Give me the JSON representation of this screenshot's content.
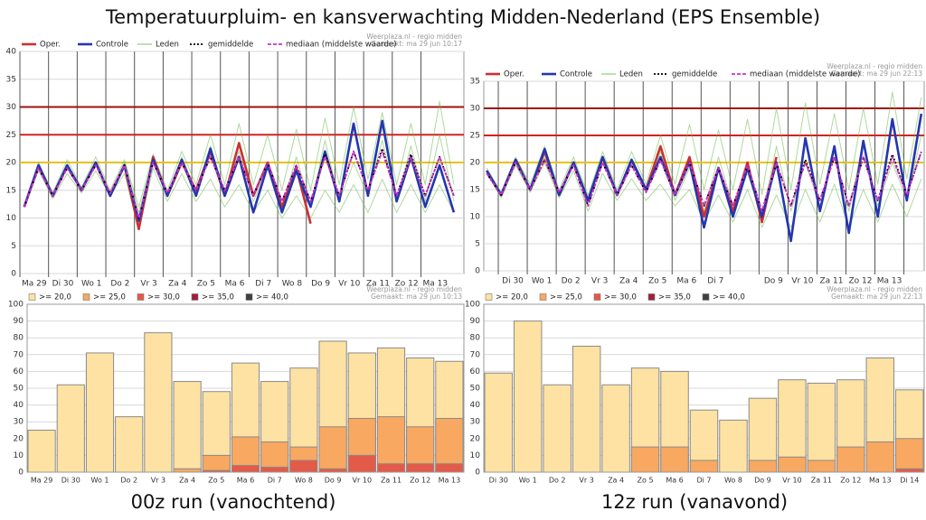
{
  "title": "Temperatuurpluim- en kansverwachting Midden-Nederland (EPS Ensemble)",
  "captions": [
    "00z run (vanochtend)",
    "12z run (vanavond)"
  ],
  "chart_data": [
    {
      "type": "line",
      "source": "Weerplaza.nl - regio midden",
      "made": "Gemaakt: ma 29 jun 10:17",
      "xlim": [
        0,
        15.5
      ],
      "ylim": [
        0,
        40
      ],
      "yticks": [
        0,
        5,
        10,
        15,
        20,
        25,
        30,
        35,
        40
      ],
      "grid": true,
      "xticks": [
        {
          "value": 0,
          "label": "Ma 29"
        },
        {
          "value": 1,
          "label": "Di 30"
        },
        {
          "value": 2,
          "label": "Wo 1"
        },
        {
          "value": 3,
          "label": "Do 2"
        },
        {
          "value": 4,
          "label": "Vr 3"
        },
        {
          "value": 5,
          "label": "Za 4"
        },
        {
          "value": 6,
          "label": "Zo 5"
        },
        {
          "value": 7,
          "label": "Ma 6"
        },
        {
          "value": 8,
          "label": "Di 7"
        },
        {
          "value": 9,
          "label": "Wo 8"
        },
        {
          "value": 10,
          "label": "Do 9"
        },
        {
          "value": 11,
          "label": "Vr 10"
        },
        {
          "value": 12,
          "label": "Za 11"
        },
        {
          "value": 13,
          "label": "Zo 12"
        },
        {
          "value": 14,
          "label": "Ma 13"
        }
      ],
      "reference_lines": [
        {
          "value": 20,
          "color": "#e8c21a"
        },
        {
          "value": 25,
          "color": "#d42020"
        },
        {
          "value": 30,
          "color": "#a01010"
        }
      ],
      "x": [
        0.15,
        0.65,
        1.15,
        1.65,
        2.15,
        2.65,
        3.15,
        3.65,
        4.15,
        4.65,
        5.15,
        5.65,
        6.15,
        6.65,
        7.15,
        7.65,
        8.15,
        8.65,
        9.15,
        9.65,
        10.15,
        10.65,
        11.15,
        11.65,
        12.15,
        12.65,
        13.15,
        13.65,
        14.15,
        14.65,
        15.15
      ],
      "series": [
        {
          "name": "Oper.",
          "color": "#cc3030",
          "values": [
            12,
            19.5,
            14,
            19.5,
            15,
            20,
            14,
            19.5,
            8,
            21,
            14,
            20,
            15,
            22,
            14,
            23.5,
            14,
            20,
            12,
            19,
            9,
            null,
            null,
            null,
            null,
            null,
            null,
            null,
            null,
            null,
            null
          ]
        },
        {
          "name": "Controle",
          "color": "#2436b0",
          "values": [
            12,
            19.5,
            14,
            19.5,
            15,
            20,
            14,
            19.5,
            9.5,
            20.5,
            14,
            20.5,
            14,
            22.5,
            14,
            21,
            11,
            19.5,
            11,
            18.5,
            12,
            22,
            13,
            27,
            14,
            27.5,
            13,
            21,
            12,
            19.5,
            11
          ]
        },
        {
          "name": "Leden",
          "color": "#6cba4c",
          "members": [
            [
              12,
              20,
              14.5,
              20.5,
              15.5,
              21,
              15,
              20.5,
              12,
              21.5,
              15,
              22,
              16,
              25,
              16,
              27,
              16,
              25,
              15,
              26,
              15,
              28,
              16,
              30,
              17,
              29,
              16,
              27,
              16,
              31,
              16
            ],
            [
              12,
              18.5,
              13.5,
              18,
              14.5,
              18.5,
              14,
              18,
              8,
              19,
              13,
              18,
              13,
              17,
              12,
              16,
              11,
              15,
              10,
              14,
              10,
              15,
              11,
              16,
              11,
              17,
              11,
              16,
              11,
              16,
              11
            ],
            [
              12,
              19.5,
              14,
              19,
              15,
              20,
              14.5,
              20,
              11,
              20.5,
              14,
              21,
              15,
              23,
              14,
              22,
              13,
              19,
              12,
              21,
              12,
              24,
              13,
              20,
              14,
              24,
              13,
              23,
              13,
              25,
              13
            ]
          ]
        },
        {
          "name": "gemiddelde",
          "color": "#000000",
          "dash": "2,2",
          "values": [
            12,
            19,
            14,
            19,
            15,
            19.5,
            14.5,
            19.5,
            10,
            20,
            14.5,
            20,
            15,
            21,
            15,
            21,
            14,
            20,
            13,
            19.5,
            13,
            21.5,
            14,
            22,
            15,
            22.5,
            14,
            21.5,
            14,
            21,
            14
          ]
        },
        {
          "name": "mediaan (middelste waarde)",
          "color": "#cc30cc",
          "dash": "4,2",
          "values": [
            12,
            19,
            14,
            19,
            15,
            19.5,
            14.5,
            19.5,
            10,
            20,
            14.5,
            20,
            15,
            21,
            15,
            21,
            14,
            20,
            13,
            19.5,
            13,
            21,
            14,
            22,
            15,
            22,
            14,
            21,
            14,
            21,
            14
          ]
        }
      ]
    },
    {
      "type": "line",
      "source": "Weerplaza.nl - regio midden",
      "made": "Gemaakt: ma 29 jun 22:13",
      "xlim": [
        0.5,
        15.7
      ],
      "ylim": [
        0,
        35
      ],
      "yticks": [
        0,
        5,
        10,
        15,
        20,
        25,
        30,
        35
      ],
      "grid": true,
      "xticks": [
        {
          "value": 1,
          "label": "Di 30"
        },
        {
          "value": 2,
          "label": "Wo 1"
        },
        {
          "value": 3,
          "label": "Do 2"
        },
        {
          "value": 4,
          "label": "Vr 3"
        },
        {
          "value": 5,
          "label": "Za 4"
        },
        {
          "value": 6,
          "label": "Zo 5"
        },
        {
          "value": 7,
          "label": "Ma 6"
        },
        {
          "value": 8,
          "label": "Di 7"
        },
        {
          "value": 9,
          "label": null
        },
        {
          "value": 10,
          "label": "Do 9"
        },
        {
          "value": 11,
          "label": "Vr 10"
        },
        {
          "value": 12,
          "label": "Za 11"
        },
        {
          "value": 13,
          "label": "Zo 12"
        },
        {
          "value": 14,
          "label": "Ma 13"
        },
        {
          "value": 15,
          "label": null
        }
      ],
      "reference_lines": [
        {
          "value": 20,
          "color": "#e8c21a"
        },
        {
          "value": 25,
          "color": "#d42020"
        },
        {
          "value": 30,
          "color": "#a01010"
        }
      ],
      "x": [
        0.6,
        1.1,
        1.6,
        2.1,
        2.6,
        3.1,
        3.6,
        4.1,
        4.6,
        5.1,
        5.6,
        6.1,
        6.6,
        7.1,
        7.6,
        8.1,
        8.6,
        9.1,
        9.6,
        10.1,
        10.6,
        11.1,
        11.6,
        12.1,
        12.6,
        13.1,
        13.6,
        14.1,
        14.6,
        15.1,
        15.6
      ],
      "series": [
        {
          "name": "Oper.",
          "color": "#cc3030",
          "values": [
            18.5,
            14,
            20.5,
            15,
            22,
            14,
            20,
            13,
            21,
            14,
            20.5,
            15,
            23,
            14,
            21,
            10,
            19,
            11,
            20,
            9,
            21,
            null,
            null,
            null,
            null,
            null,
            null,
            null,
            null,
            null,
            null
          ]
        },
        {
          "name": "Controle",
          "color": "#2436b0",
          "values": [
            18.5,
            14,
            20.5,
            15,
            22.5,
            14,
            20,
            13,
            21,
            14,
            20.5,
            15,
            21,
            14,
            20,
            8,
            19,
            10,
            19,
            10,
            20,
            5.5,
            24.5,
            11,
            23,
            7,
            24,
            10,
            28,
            13,
            29
          ]
        },
        {
          "name": "Leden",
          "color": "#6cba4c",
          "members": [
            [
              19,
              14.5,
              21,
              16,
              23,
              15,
              21,
              14,
              22,
              15,
              22,
              16,
              25,
              16,
              27,
              15,
              26,
              15,
              28,
              14,
              30,
              15,
              31,
              16,
              29,
              15,
              30,
              16,
              33,
              17,
              32
            ],
            [
              18,
              13.5,
              19.5,
              14.5,
              20,
              13.5,
              18.5,
              11,
              18,
              13,
              17,
              13,
              16,
              12,
              15,
              9,
              14,
              9,
              15,
              8,
              14,
              8,
              15,
              9,
              16,
              8,
              15,
              9,
              16,
              10,
              17
            ],
            [
              18.5,
              14,
              20,
              15,
              21,
              14,
              20,
              12.5,
              20.5,
              14,
              20,
              14.5,
              22,
              13,
              19,
              11,
              21,
              12,
              18,
              10,
              23,
              11,
              20,
              12,
              22,
              11,
              24,
              12,
              20,
              13,
              25
            ]
          ]
        },
        {
          "name": "gemiddelde",
          "color": "#000000",
          "dash": "2,2",
          "values": [
            18,
            14,
            20,
            15,
            20.5,
            14.5,
            19.5,
            12,
            20,
            14,
            19.5,
            14.5,
            20.5,
            14,
            20,
            12,
            19,
            12,
            19.5,
            11,
            20,
            12,
            20.5,
            13,
            21,
            12,
            21,
            13,
            21.5,
            14,
            22
          ]
        },
        {
          "name": "mediaan (middelste waarde)",
          "color": "#cc30cc",
          "dash": "4,2",
          "values": [
            18,
            14,
            20,
            15,
            20.5,
            14.5,
            19.5,
            12,
            20,
            14,
            19.5,
            14.5,
            20.5,
            14,
            20,
            12,
            19,
            12,
            19.5,
            11,
            20,
            12,
            20,
            13,
            21,
            12,
            21,
            13,
            21,
            14,
            22
          ]
        }
      ]
    },
    {
      "type": "bar",
      "source": "Weerplaza.nl - regio midden",
      "made": "Gemaakt: ma 29 jun 10:13",
      "ylim": [
        0,
        100
      ],
      "yticks": [
        0,
        10,
        20,
        30,
        40,
        50,
        60,
        70,
        80,
        90,
        100
      ],
      "grid": true,
      "categories": [
        "Ma 29",
        "Di 30",
        "Wo 1",
        "Do 2",
        "Vr 3",
        "Za 4",
        "Zo 5",
        "Ma 6",
        "Di 7",
        "Wo 8",
        "Do 9",
        "Vr 10",
        "Za 11",
        "Zo 12",
        "Ma 13"
      ],
      "series": [
        {
          "name": ">= 20,0",
          "color": "#fde2a3",
          "values": [
            25,
            52,
            71,
            33,
            83,
            54,
            48,
            65,
            54,
            62,
            78,
            71,
            74,
            68,
            66
          ]
        },
        {
          "name": ">= 25,0",
          "color": "#f8a860",
          "values": [
            0,
            0,
            0,
            0,
            0,
            2,
            10,
            21,
            18,
            15,
            27,
            32,
            33,
            27,
            32
          ]
        },
        {
          "name": ">= 30,0",
          "color": "#e45a48",
          "values": [
            0,
            0,
            0,
            0,
            0,
            0,
            1,
            4,
            3,
            7,
            2,
            10,
            5,
            5,
            5
          ]
        },
        {
          "name": ">= 35,0",
          "color": "#a0203a",
          "values": [
            0,
            0,
            0,
            0,
            0,
            0,
            0,
            0,
            0,
            0,
            0,
            0,
            0,
            0,
            0
          ]
        },
        {
          "name": ">= 40,0",
          "color": "#404040",
          "values": [
            0,
            0,
            0,
            0,
            0,
            0,
            0,
            0,
            0,
            0,
            0,
            0,
            0,
            0,
            0
          ]
        }
      ]
    },
    {
      "type": "bar",
      "source": "Weerplaza.nl - regio midden",
      "made": "Gemaakt: ma 29 jun 22:13",
      "ylim": [
        0,
        100
      ],
      "yticks": [
        0,
        10,
        20,
        30,
        40,
        50,
        60,
        70,
        80,
        90,
        100
      ],
      "grid": true,
      "categories": [
        "Di 30",
        "Wo 1",
        "Do 2",
        "Vr 3",
        "Za 4",
        "Zo 5",
        "Ma 6",
        "Di 7",
        "Wo 8",
        "Do 9",
        "Vr 10",
        "Za 11",
        "Zo 12",
        "Ma 13",
        "Di 14"
      ],
      "series": [
        {
          "name": ">= 20,0",
          "color": "#fde2a3",
          "values": [
            59,
            90,
            52,
            75,
            52,
            62,
            60,
            37,
            31,
            44,
            55,
            53,
            55,
            68,
            49
          ]
        },
        {
          "name": ">= 25,0",
          "color": "#f8a860",
          "values": [
            0,
            0,
            0,
            0,
            0,
            15,
            15,
            7,
            0,
            7,
            9,
            7,
            15,
            18,
            20
          ]
        },
        {
          "name": ">= 30,0",
          "color": "#e45a48",
          "values": [
            0,
            0,
            0,
            0,
            0,
            0,
            0,
            0,
            0,
            0,
            0,
            0,
            0,
            0,
            2
          ]
        },
        {
          "name": ">= 35,0",
          "color": "#a0203a",
          "values": [
            0,
            0,
            0,
            0,
            0,
            0,
            0,
            0,
            0,
            0,
            0,
            0,
            0,
            0,
            0
          ]
        },
        {
          "name": ">= 40,0",
          "color": "#404040",
          "values": [
            0,
            0,
            0,
            0,
            0,
            0,
            0,
            0,
            0,
            0,
            0,
            0,
            0,
            0,
            0
          ]
        }
      ]
    }
  ]
}
